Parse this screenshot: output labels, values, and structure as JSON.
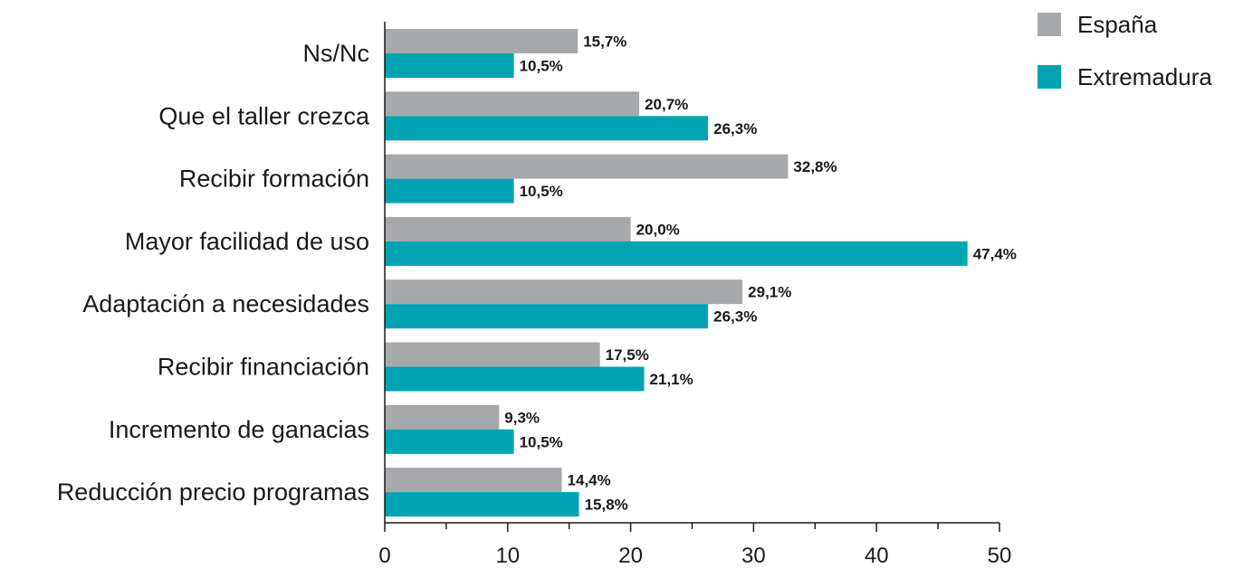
{
  "chart_data": {
    "type": "bar",
    "orientation": "horizontal",
    "categories": [
      "Ns/Nc",
      "Que el taller crezca",
      "Recibir formación",
      "Mayor facilidad de uso",
      "Adaptación a necesidades",
      "Recibir financiación",
      "Incremento de ganacias",
      "Reducción precio programas"
    ],
    "series": [
      {
        "name": "España",
        "color": "#a7a8ab",
        "values": [
          15.7,
          20.7,
          32.8,
          20.0,
          29.1,
          17.5,
          9.3,
          14.4
        ],
        "labels": [
          "15,7%",
          "20,7%",
          "32,8%",
          "20,0%",
          "29,1%",
          "17,5%",
          "9,3%",
          "14,4%"
        ]
      },
      {
        "name": "Extremadura",
        "color": "#00a3b1",
        "values": [
          10.5,
          26.3,
          10.5,
          47.4,
          26.3,
          21.1,
          10.5,
          15.8
        ],
        "labels": [
          "10,5%",
          "26,3%",
          "10,5%",
          "47,4%",
          "26,3%",
          "21,1%",
          "10,5%",
          "15,8%"
        ]
      }
    ],
    "xlim": [
      0,
      50
    ],
    "xticks": [
      "0",
      "10",
      "20",
      "30",
      "40",
      "50"
    ],
    "legend_position": "top-right",
    "grid": false,
    "title": "",
    "xlabel": "",
    "ylabel": ""
  }
}
